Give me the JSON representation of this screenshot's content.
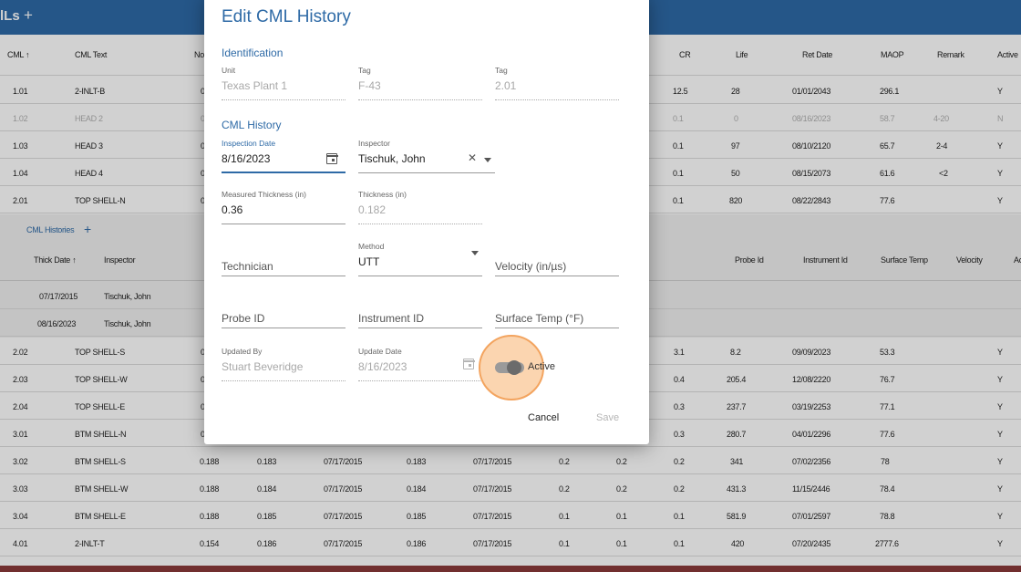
{
  "app": {
    "title": "lLs",
    "add": "+"
  },
  "grid": {
    "headers": {
      "cml": "CML ↑",
      "cml_text": "CML Text",
      "no": "No",
      "cr": "CR",
      "life": "Life",
      "ret_date": "Ret Date",
      "maop": "MAOP",
      "remark": "Remark",
      "active": "Active"
    },
    "rows_top": [
      {
        "cml": "1.01",
        "text": "2-INLT-B",
        "c3": "0",
        "cr": "12.5",
        "life": "28",
        "ret": "01/01/2043",
        "maop": "296.1",
        "remark": "",
        "active": "Y",
        "inactive": false
      },
      {
        "cml": "1.02",
        "text": "HEAD 2",
        "c3": "0",
        "cr": "0.1",
        "life": "0",
        "ret": "08/16/2023",
        "maop": "58.7",
        "remark": "4-20",
        "active": "N",
        "inactive": true
      },
      {
        "cml": "1.03",
        "text": "HEAD 3",
        "c3": "0",
        "cr": "0.1",
        "life": "97",
        "ret": "08/10/2120",
        "maop": "65.7",
        "remark": "2-4",
        "active": "Y",
        "inactive": false
      },
      {
        "cml": "1.04",
        "text": "HEAD 4",
        "c3": "0",
        "cr": "0.1",
        "life": "50",
        "ret": "08/15/2073",
        "maop": "61.6",
        "remark": "<2",
        "active": "Y",
        "inactive": false
      },
      {
        "cml": "2.01",
        "text": "TOP SHELL-N",
        "c3": "0",
        "cr": "0.1",
        "life": "820",
        "ret": "08/22/2843",
        "maop": "77.6",
        "remark": "",
        "active": "Y",
        "inactive": false
      }
    ],
    "histories": {
      "title": "CML Histories",
      "add": "+",
      "headers": {
        "thick_date": "Thick Date ↑",
        "inspector": "Inspector",
        "probe_id": "Probe Id",
        "instrument_id": "Instrument Id",
        "surface_temp": "Surface Temp",
        "velocity": "Velocity",
        "a": "Ac"
      },
      "rows": [
        {
          "date": "07/17/2015",
          "inspector": "Tischuk, John"
        },
        {
          "date": "08/16/2023",
          "inspector": "Tischuk, John"
        }
      ]
    },
    "rows_bottom": [
      {
        "cml": "2.02",
        "text": "TOP SHELL-S",
        "c3": "0",
        "c4": "",
        "c5": "",
        "c6": "",
        "c7": "",
        "c8": "",
        "c9": "",
        "cr": "3.1",
        "life": "8.2",
        "ret": "09/09/2023",
        "maop": "53.3",
        "active": "Y"
      },
      {
        "cml": "2.03",
        "text": "TOP SHELL-W",
        "c3": "0",
        "c4": "",
        "c5": "",
        "c6": "",
        "c7": "",
        "c8": "",
        "c9": "",
        "cr": "0.4",
        "life": "205.4",
        "ret": "12/08/2220",
        "maop": "76.7",
        "active": "Y"
      },
      {
        "cml": "2.04",
        "text": "TOP SHELL-E",
        "c3": "0",
        "c4": "",
        "c5": "",
        "c6": "",
        "c7": "",
        "c8": "",
        "c9": "",
        "cr": "0.3",
        "life": "237.7",
        "ret": "03/19/2253",
        "maop": "77.1",
        "active": "Y"
      },
      {
        "cml": "3.01",
        "text": "BTM SHELL-N",
        "c3": "0",
        "c4": "",
        "c5": "",
        "c6": "",
        "c7": "",
        "c8": "",
        "c9": "",
        "cr": "0.3",
        "life": "280.7",
        "ret": "04/01/2296",
        "maop": "77.6",
        "active": "Y"
      },
      {
        "cml": "3.02",
        "text": "BTM SHELL-S",
        "c3": "0.188",
        "c4": "0.183",
        "c5": "07/17/2015",
        "c6": "0.183",
        "c7": "07/17/2015",
        "c8": "0.2",
        "c9": "0.2",
        "cr": "0.2",
        "life": "341",
        "ret": "07/02/2356",
        "maop": "78",
        "active": "Y"
      },
      {
        "cml": "3.03",
        "text": "BTM SHELL-W",
        "c3": "0.188",
        "c4": "0.184",
        "c5": "07/17/2015",
        "c6": "0.184",
        "c7": "07/17/2015",
        "c8": "0.2",
        "c9": "0.2",
        "cr": "0.2",
        "life": "431.3",
        "ret": "11/15/2446",
        "maop": "78.4",
        "active": "Y"
      },
      {
        "cml": "3.04",
        "text": "BTM SHELL-E",
        "c3": "0.188",
        "c4": "0.185",
        "c5": "07/17/2015",
        "c6": "0.185",
        "c7": "07/17/2015",
        "c8": "0.1",
        "c9": "0.1",
        "cr": "0.1",
        "life": "581.9",
        "ret": "07/01/2597",
        "maop": "78.8",
        "active": "Y"
      },
      {
        "cml": "4.01",
        "text": "2-INLT-T",
        "c3": "0.154",
        "c4": "0.186",
        "c5": "07/17/2015",
        "c6": "0.186",
        "c7": "07/17/2015",
        "c8": "0.1",
        "c9": "0.1",
        "cr": "0.1",
        "life": "420",
        "ret": "07/20/2435",
        "maop": "2777.6",
        "active": "Y"
      }
    ]
  },
  "dialog": {
    "title": "Edit CML History",
    "identification": {
      "section": "Identification",
      "unit_label": "Unit",
      "unit_value": "Texas Plant 1",
      "tag_label": "Tag",
      "tag_value": "F-43",
      "tag2_label": "Tag",
      "tag2_value": "2.01"
    },
    "history": {
      "section": "CML History",
      "inspection_date_label": "Inspection Date",
      "inspection_date_value": "8/16/2023",
      "inspector_label": "Inspector",
      "inspector_value": "Tischuk, John",
      "measured_label": "Measured Thickness (in)",
      "measured_value": "0.36",
      "thickness_label": "Thickness (in)",
      "thickness_value": "0.182",
      "technician_placeholder": "Technician",
      "method_label": "Method",
      "method_value": "UTT",
      "velocity_placeholder": "Velocity (in/µs)",
      "probe_placeholder": "Probe ID",
      "instrument_placeholder": "Instrument ID",
      "surface_temp_placeholder": "Surface Temp (°F)",
      "updated_by_label": "Updated By",
      "updated_by_value": "Stuart Beveridge",
      "update_date_label": "Update Date",
      "update_date_value": "8/16/2023",
      "active_label": "Active"
    },
    "buttons": {
      "cancel": "Cancel",
      "save": "Save"
    }
  },
  "colors": {
    "accent": "#2e6aa6",
    "highlight": "#f3a45f"
  }
}
